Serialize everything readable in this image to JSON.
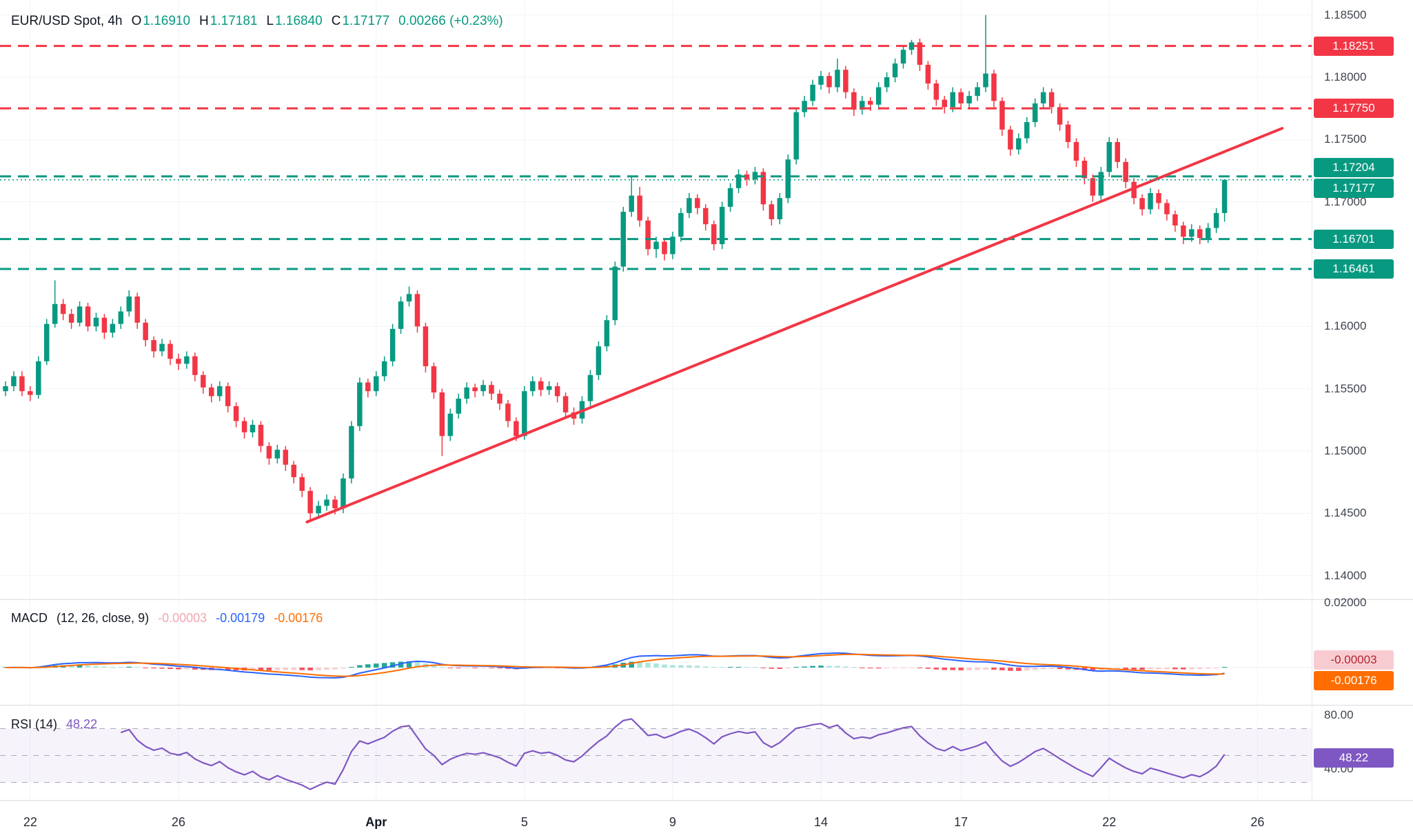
{
  "header": {
    "symbol": "EUR/USD Spot, 4h",
    "ohlc": [
      {
        "label": "O",
        "value": "1.16910"
      },
      {
        "label": "H",
        "value": "1.17181"
      },
      {
        "label": "L",
        "value": "1.16840"
      },
      {
        "label": "C",
        "value": "1.17177"
      }
    ],
    "change": "0.00266 (+0.23%)"
  },
  "macd_legend": {
    "title": "MACD",
    "params": "(12, 26, close, 9)",
    "hist_value": "-0.00003",
    "macd_value": "-0.00179",
    "signal_value": "-0.00176"
  },
  "rsi_legend": {
    "title": "RSI (14)",
    "value": "48.22"
  },
  "colors": {
    "up": "#089981",
    "down": "#f23645",
    "resistance_line": "#f23645",
    "support_line": "#089981",
    "trendline": "#f23645",
    "macd_line": "#2962ff",
    "signal_line": "#ff6d00",
    "hist_up": "#26a69a",
    "hist_up_weak": "#ace5dc",
    "hist_down": "#f7525f",
    "hist_down_weak": "#fccbcd",
    "rsi_line": "#7e57c2",
    "grid": "#f2f4f7"
  },
  "chart_data": {
    "type": "candlestick",
    "title": "EUR/USD Spot, 4h",
    "symbol": "EUR/USD Spot",
    "interval": "4h",
    "last_bar": {
      "open": 1.1691,
      "high": 1.17181,
      "low": 1.1684,
      "close": 1.17177,
      "change": 0.00266,
      "change_pct": 0.23
    },
    "price_range": {
      "top": 1.1862,
      "bottom": 1.13815
    },
    "candles": [
      [
        1.1548,
        1.1556,
        1.1544,
        1.1552
      ],
      [
        1.1552,
        1.1564,
        1.1548,
        1.156
      ],
      [
        1.156,
        1.1564,
        1.1544,
        1.1548
      ],
      [
        1.1548,
        1.1552,
        1.154,
        1.1545
      ],
      [
        1.1545,
        1.1576,
        1.1542,
        1.1572
      ],
      [
        1.1572,
        1.1606,
        1.1569,
        1.1602
      ],
      [
        1.1602,
        1.1637,
        1.1599,
        1.1618
      ],
      [
        1.1618,
        1.1622,
        1.1605,
        1.161
      ],
      [
        1.161,
        1.1614,
        1.1598,
        1.1603
      ],
      [
        1.1603,
        1.162,
        1.16,
        1.1616
      ],
      [
        1.1616,
        1.1619,
        1.1596,
        1.16
      ],
      [
        1.16,
        1.1611,
        1.1596,
        1.1607
      ],
      [
        1.1607,
        1.161,
        1.159,
        1.1595
      ],
      [
        1.1595,
        1.1606,
        1.1591,
        1.1602
      ],
      [
        1.1602,
        1.1616,
        1.1598,
        1.1612
      ],
      [
        1.1612,
        1.1629,
        1.1608,
        1.1624
      ],
      [
        1.1624,
        1.1627,
        1.1598,
        1.1603
      ],
      [
        1.1603,
        1.1606,
        1.1584,
        1.1589
      ],
      [
        1.1589,
        1.1592,
        1.1575,
        1.158
      ],
      [
        1.158,
        1.159,
        1.1576,
        1.1586
      ],
      [
        1.1586,
        1.1589,
        1.1569,
        1.1574
      ],
      [
        1.1574,
        1.1578,
        1.1565,
        1.157
      ],
      [
        1.157,
        1.158,
        1.1566,
        1.1576
      ],
      [
        1.1576,
        1.1579,
        1.1556,
        1.1561
      ],
      [
        1.1561,
        1.1564,
        1.1546,
        1.1551
      ],
      [
        1.1551,
        1.1554,
        1.1539,
        1.1544
      ],
      [
        1.1544,
        1.1556,
        1.154,
        1.1552
      ],
      [
        1.1552,
        1.1555,
        1.1531,
        1.1536
      ],
      [
        1.1536,
        1.1539,
        1.1519,
        1.1524
      ],
      [
        1.1524,
        1.1527,
        1.151,
        1.1515
      ],
      [
        1.1515,
        1.1525,
        1.1511,
        1.1521
      ],
      [
        1.1521,
        1.1524,
        1.1499,
        1.1504
      ],
      [
        1.1504,
        1.1507,
        1.1489,
        1.1494
      ],
      [
        1.1494,
        1.1505,
        1.149,
        1.1501
      ],
      [
        1.1501,
        1.1504,
        1.1484,
        1.1489
      ],
      [
        1.1489,
        1.1492,
        1.1474,
        1.1479
      ],
      [
        1.1479,
        1.1482,
        1.1463,
        1.1468
      ],
      [
        1.1468,
        1.1471,
        1.1443,
        1.145
      ],
      [
        1.145,
        1.146,
        1.1446,
        1.1456
      ],
      [
        1.1456,
        1.1465,
        1.1452,
        1.1461
      ],
      [
        1.1461,
        1.1464,
        1.1449,
        1.1454
      ],
      [
        1.1454,
        1.1482,
        1.145,
        1.1478
      ],
      [
        1.1478,
        1.1524,
        1.1474,
        1.152
      ],
      [
        1.152,
        1.1559,
        1.1516,
        1.1555
      ],
      [
        1.1555,
        1.1558,
        1.1543,
        1.1548
      ],
      [
        1.1548,
        1.1564,
        1.1544,
        1.156
      ],
      [
        1.156,
        1.1576,
        1.1556,
        1.1572
      ],
      [
        1.1572,
        1.1602,
        1.1568,
        1.1598
      ],
      [
        1.1598,
        1.1624,
        1.1594,
        1.162
      ],
      [
        1.162,
        1.1632,
        1.1616,
        1.1626
      ],
      [
        1.1626,
        1.1629,
        1.1595,
        1.16
      ],
      [
        1.16,
        1.1603,
        1.1563,
        1.1568
      ],
      [
        1.1568,
        1.1571,
        1.1542,
        1.1547
      ],
      [
        1.1547,
        1.155,
        1.1496,
        1.1512
      ],
      [
        1.1512,
        1.1534,
        1.1508,
        1.153
      ],
      [
        1.153,
        1.1546,
        1.1526,
        1.1542
      ],
      [
        1.1542,
        1.1555,
        1.1538,
        1.1551
      ],
      [
        1.1551,
        1.1554,
        1.1543,
        1.1548
      ],
      [
        1.1548,
        1.1557,
        1.1544,
        1.1553
      ],
      [
        1.1553,
        1.1556,
        1.1541,
        1.1546
      ],
      [
        1.1546,
        1.1549,
        1.1533,
        1.1538
      ],
      [
        1.1538,
        1.1541,
        1.1519,
        1.1524
      ],
      [
        1.1524,
        1.1527,
        1.1508,
        1.1512
      ],
      [
        1.1512,
        1.1552,
        1.1509,
        1.1548
      ],
      [
        1.1548,
        1.156,
        1.1544,
        1.1556
      ],
      [
        1.1556,
        1.1559,
        1.1544,
        1.1549
      ],
      [
        1.1549,
        1.1556,
        1.1545,
        1.1552
      ],
      [
        1.1552,
        1.1555,
        1.1539,
        1.1544
      ],
      [
        1.1544,
        1.1547,
        1.1526,
        1.1531
      ],
      [
        1.1531,
        1.1535,
        1.1521,
        1.1526
      ],
      [
        1.1526,
        1.1544,
        1.1522,
        1.154
      ],
      [
        1.154,
        1.1565,
        1.1536,
        1.1561
      ],
      [
        1.1561,
        1.1588,
        1.1557,
        1.1584
      ],
      [
        1.1584,
        1.1609,
        1.158,
        1.1605
      ],
      [
        1.1605,
        1.1652,
        1.1601,
        1.1648
      ],
      [
        1.1648,
        1.1696,
        1.1644,
        1.1692
      ],
      [
        1.1692,
        1.172,
        1.1688,
        1.1705
      ],
      [
        1.1705,
        1.1712,
        1.168,
        1.1685
      ],
      [
        1.1685,
        1.1688,
        1.1657,
        1.1662
      ],
      [
        1.1662,
        1.1672,
        1.1655,
        1.1668
      ],
      [
        1.1668,
        1.1671,
        1.1653,
        1.1658
      ],
      [
        1.1658,
        1.1676,
        1.1654,
        1.1672
      ],
      [
        1.1672,
        1.1695,
        1.1668,
        1.1691
      ],
      [
        1.1691,
        1.1707,
        1.1687,
        1.1703
      ],
      [
        1.1703,
        1.1706,
        1.169,
        1.1695
      ],
      [
        1.1695,
        1.1698,
        1.1677,
        1.1682
      ],
      [
        1.1682,
        1.1685,
        1.1661,
        1.1666
      ],
      [
        1.1666,
        1.17,
        1.1662,
        1.1696
      ],
      [
        1.1696,
        1.1715,
        1.1692,
        1.1711
      ],
      [
        1.1711,
        1.1726,
        1.1707,
        1.1722
      ],
      [
        1.1722,
        1.1725,
        1.1713,
        1.1718
      ],
      [
        1.1718,
        1.1728,
        1.1714,
        1.1724
      ],
      [
        1.1724,
        1.1727,
        1.1693,
        1.1698
      ],
      [
        1.1698,
        1.1701,
        1.1681,
        1.1686
      ],
      [
        1.1686,
        1.1707,
        1.1682,
        1.1703
      ],
      [
        1.1703,
        1.1738,
        1.1699,
        1.1734
      ],
      [
        1.1734,
        1.1776,
        1.173,
        1.1772
      ],
      [
        1.1772,
        1.1785,
        1.1768,
        1.1781
      ],
      [
        1.1781,
        1.1798,
        1.1777,
        1.1794
      ],
      [
        1.1794,
        1.1805,
        1.179,
        1.1801
      ],
      [
        1.1801,
        1.1804,
        1.1787,
        1.1792
      ],
      [
        1.1792,
        1.1815,
        1.1788,
        1.1806
      ],
      [
        1.1806,
        1.1809,
        1.1783,
        1.1788
      ],
      [
        1.1788,
        1.1791,
        1.1769,
        1.1774
      ],
      [
        1.1774,
        1.1785,
        1.177,
        1.1781
      ],
      [
        1.1781,
        1.1784,
        1.1773,
        1.1778
      ],
      [
        1.1778,
        1.1796,
        1.1774,
        1.1792
      ],
      [
        1.1792,
        1.1804,
        1.1788,
        1.18
      ],
      [
        1.18,
        1.1815,
        1.1796,
        1.1811
      ],
      [
        1.1811,
        1.1826,
        1.1807,
        1.1822
      ],
      [
        1.1822,
        1.183,
        1.1818,
        1.1828
      ],
      [
        1.1828,
        1.1831,
        1.1805,
        1.181
      ],
      [
        1.181,
        1.1813,
        1.179,
        1.1795
      ],
      [
        1.1795,
        1.1798,
        1.1777,
        1.1782
      ],
      [
        1.1782,
        1.1785,
        1.1771,
        1.1776
      ],
      [
        1.1776,
        1.1792,
        1.1772,
        1.1788
      ],
      [
        1.1788,
        1.1791,
        1.1774,
        1.1779
      ],
      [
        1.1779,
        1.1789,
        1.1775,
        1.1785
      ],
      [
        1.1785,
        1.1796,
        1.1781,
        1.1792
      ],
      [
        1.1792,
        1.185,
        1.1788,
        1.1803
      ],
      [
        1.1803,
        1.1806,
        1.1776,
        1.1781
      ],
      [
        1.1781,
        1.1784,
        1.1753,
        1.1758
      ],
      [
        1.1758,
        1.1761,
        1.1737,
        1.1742
      ],
      [
        1.1742,
        1.1755,
        1.1738,
        1.1751
      ],
      [
        1.1751,
        1.1768,
        1.1747,
        1.1764
      ],
      [
        1.1764,
        1.1783,
        1.176,
        1.1779
      ],
      [
        1.1779,
        1.1792,
        1.1775,
        1.1788
      ],
      [
        1.1788,
        1.1791,
        1.1771,
        1.1776
      ],
      [
        1.1776,
        1.1779,
        1.1757,
        1.1762
      ],
      [
        1.1762,
        1.1765,
        1.1743,
        1.1748
      ],
      [
        1.1748,
        1.1751,
        1.1728,
        1.1733
      ],
      [
        1.1733,
        1.1736,
        1.1714,
        1.1719
      ],
      [
        1.1719,
        1.1722,
        1.17,
        1.1705
      ],
      [
        1.1705,
        1.1728,
        1.1701,
        1.1724
      ],
      [
        1.1724,
        1.1752,
        1.172,
        1.1748
      ],
      [
        1.1748,
        1.1751,
        1.1727,
        1.1732
      ],
      [
        1.1732,
        1.1735,
        1.1711,
        1.1716
      ],
      [
        1.1716,
        1.1719,
        1.1698,
        1.1703
      ],
      [
        1.1703,
        1.1706,
        1.1689,
        1.1694
      ],
      [
        1.1694,
        1.1711,
        1.169,
        1.1707
      ],
      [
        1.1707,
        1.171,
        1.1694,
        1.1699
      ],
      [
        1.1699,
        1.1702,
        1.1685,
        1.169
      ],
      [
        1.169,
        1.1693,
        1.1676,
        1.1681
      ],
      [
        1.1681,
        1.1684,
        1.1666,
        1.1672
      ],
      [
        1.1672,
        1.1682,
        1.1668,
        1.1678
      ],
      [
        1.1678,
        1.1681,
        1.1666,
        1.1671
      ],
      [
        1.1671,
        1.1683,
        1.1667,
        1.1679
      ],
      [
        1.1679,
        1.1695,
        1.1675,
        1.1691
      ],
      [
        1.1691,
        1.17181,
        1.1684,
        1.17177
      ]
    ],
    "levels": [
      {
        "price": 1.18251,
        "label": "1.18251",
        "color": "red"
      },
      {
        "price": 1.1775,
        "label": "1.17750",
        "color": "red"
      },
      {
        "price": 1.17204,
        "label": "1.17204",
        "color": "green"
      },
      {
        "price": 1.16701,
        "label": "1.16701",
        "color": "green"
      },
      {
        "price": 1.16461,
        "label": "1.16461",
        "color": "green"
      }
    ],
    "current_price": {
      "price": 1.17177,
      "label": "1.17177"
    },
    "trendline": {
      "from_bar": 36.6,
      "from_price": 1.1443,
      "to_bar": 155,
      "to_price": 1.1759
    },
    "price_axis_ticks": [
      {
        "price": 1.185,
        "label": "1.18500"
      },
      {
        "price": 1.18,
        "label": "1.18000"
      },
      {
        "price": 1.175,
        "label": "1.17500"
      },
      {
        "price": 1.17,
        "label": "1.17000"
      },
      {
        "price": 1.16,
        "label": "1.16000"
      },
      {
        "price": 1.155,
        "label": "1.15500"
      },
      {
        "price": 1.15,
        "label": "1.15000"
      },
      {
        "price": 1.145,
        "label": "1.14500"
      },
      {
        "price": 1.14,
        "label": "1.14000"
      }
    ],
    "time_labels": [
      {
        "bar": 3,
        "label": "22"
      },
      {
        "bar": 21,
        "label": "26"
      },
      {
        "bar": 45,
        "label": "Apr",
        "major": true
      },
      {
        "bar": 63,
        "label": "5"
      },
      {
        "bar": 81,
        "label": "9"
      },
      {
        "bar": 99,
        "label": "14"
      },
      {
        "bar": 116,
        "label": "17"
      },
      {
        "bar": 134,
        "label": "22"
      },
      {
        "bar": 152,
        "label": "26"
      }
    ],
    "macd": {
      "fast": 12,
      "slow": 26,
      "source": "close",
      "signal": 9,
      "hist_value": -3e-05,
      "macd_value": -0.00179,
      "signal_value": -0.00176,
      "axis_tick": {
        "value": 0.02,
        "label": "0.02000"
      },
      "badges": [
        {
          "label": "-0.00003",
          "style": "pink",
          "value": -3e-05
        },
        {
          "label": "-0.00176",
          "style": "orange",
          "value": -0.00176
        }
      ]
    },
    "rsi": {
      "period": 14,
      "value": 48.22,
      "bands": {
        "upper": 70,
        "middle": 50,
        "lower": 30
      },
      "axis_ticks": [
        {
          "value": 80,
          "label": "80.00"
        },
        {
          "value": 40,
          "label": "40.00"
        }
      ],
      "badge": {
        "label": "48.22",
        "value": 48.22,
        "style": "purple"
      }
    }
  }
}
